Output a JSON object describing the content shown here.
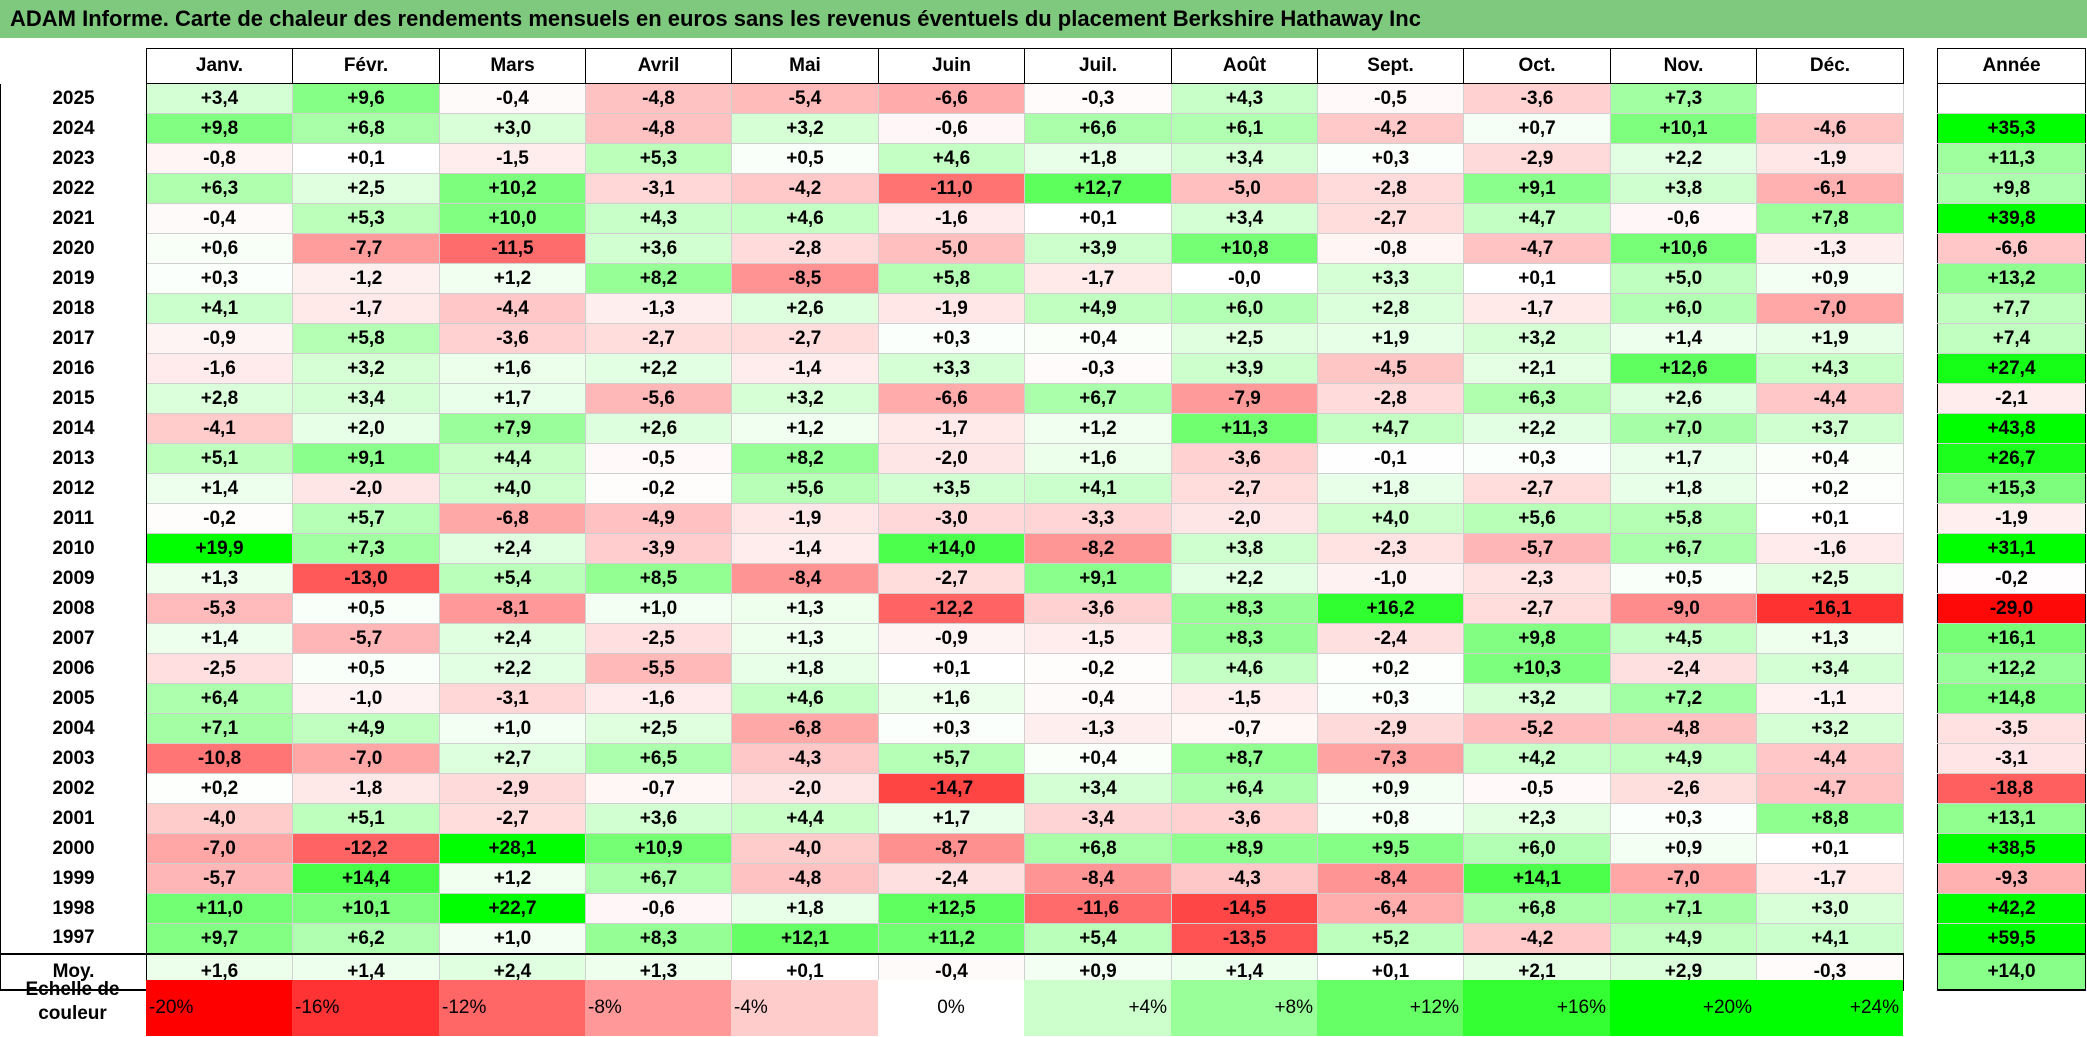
{
  "title": "ADAM Informe. Carte de chaleur des rendements mensuels en euros sans les revenus éventuels du placement Berkshire Hathaway Inc",
  "chart_data": {
    "type": "heatmap",
    "title": "ADAM Informe. Carte de chaleur des rendements mensuels en euros sans les revenus éventuels du placement Berkshire Hathaway Inc",
    "months": [
      "Janv.",
      "Févr.",
      "Mars",
      "Avril",
      "Mai",
      "Juin",
      "Juil.",
      "Août",
      "Sept.",
      "Oct.",
      "Nov.",
      "Déc."
    ],
    "annual_header": "Année",
    "rows": [
      {
        "year": "2025",
        "values": [
          "+3,4",
          "+9,6",
          "-0,4",
          "-4,8",
          "-5,4",
          "-6,6",
          "-0,3",
          "+4,3",
          "-0,5",
          "-3,6",
          "+7,3",
          ""
        ],
        "annual": ""
      },
      {
        "year": "2024",
        "values": [
          "+9,8",
          "+6,8",
          "+3,0",
          "-4,8",
          "+3,2",
          "-0,6",
          "+6,6",
          "+6,1",
          "-4,2",
          "+0,7",
          "+10,1",
          "-4,6"
        ],
        "annual": "+35,3"
      },
      {
        "year": "2023",
        "values": [
          "-0,8",
          "+0,1",
          "-1,5",
          "+5,3",
          "+0,5",
          "+4,6",
          "+1,8",
          "+3,4",
          "+0,3",
          "-2,9",
          "+2,2",
          "-1,9"
        ],
        "annual": "+11,3"
      },
      {
        "year": "2022",
        "values": [
          "+6,3",
          "+2,5",
          "+10,2",
          "-3,1",
          "-4,2",
          "-11,0",
          "+12,7",
          "-5,0",
          "-2,8",
          "+9,1",
          "+3,8",
          "-6,1"
        ],
        "annual": "+9,8"
      },
      {
        "year": "2021",
        "values": [
          "-0,4",
          "+5,3",
          "+10,0",
          "+4,3",
          "+4,6",
          "-1,6",
          "+0,1",
          "+3,4",
          "-2,7",
          "+4,7",
          "-0,6",
          "+7,8"
        ],
        "annual": "+39,8"
      },
      {
        "year": "2020",
        "values": [
          "+0,6",
          "-7,7",
          "-11,5",
          "+3,6",
          "-2,8",
          "-5,0",
          "+3,9",
          "+10,8",
          "-0,8",
          "-4,7",
          "+10,6",
          "-1,3"
        ],
        "annual": "-6,6"
      },
      {
        "year": "2019",
        "values": [
          "+0,3",
          "-1,2",
          "+1,2",
          "+8,2",
          "-8,5",
          "+5,8",
          "-1,7",
          "-0,0",
          "+3,3",
          "+0,1",
          "+5,0",
          "+0,9"
        ],
        "annual": "+13,2"
      },
      {
        "year": "2018",
        "values": [
          "+4,1",
          "-1,7",
          "-4,4",
          "-1,3",
          "+2,6",
          "-1,9",
          "+4,9",
          "+6,0",
          "+2,8",
          "-1,7",
          "+6,0",
          "-7,0"
        ],
        "annual": "+7,7"
      },
      {
        "year": "2017",
        "values": [
          "-0,9",
          "+5,8",
          "-3,6",
          "-2,7",
          "-2,7",
          "+0,3",
          "+0,4",
          "+2,5",
          "+1,9",
          "+3,2",
          "+1,4",
          "+1,9"
        ],
        "annual": "+7,4"
      },
      {
        "year": "2016",
        "values": [
          "-1,6",
          "+3,2",
          "+1,6",
          "+2,2",
          "-1,4",
          "+3,3",
          "-0,3",
          "+3,9",
          "-4,5",
          "+2,1",
          "+12,6",
          "+4,3"
        ],
        "annual": "+27,4"
      },
      {
        "year": "2015",
        "values": [
          "+2,8",
          "+3,4",
          "+1,7",
          "-5,6",
          "+3,2",
          "-6,6",
          "+6,7",
          "-7,9",
          "-2,8",
          "+6,3",
          "+2,6",
          "-4,4"
        ],
        "annual": "-2,1"
      },
      {
        "year": "2014",
        "values": [
          "-4,1",
          "+2,0",
          "+7,9",
          "+2,6",
          "+1,2",
          "-1,7",
          "+1,2",
          "+11,3",
          "+4,7",
          "+2,2",
          "+7,0",
          "+3,7"
        ],
        "annual": "+43,8"
      },
      {
        "year": "2013",
        "values": [
          "+5,1",
          "+9,1",
          "+4,4",
          "-0,5",
          "+8,2",
          "-2,0",
          "+1,6",
          "-3,6",
          "-0,1",
          "+0,3",
          "+1,7",
          "+0,4"
        ],
        "annual": "+26,7"
      },
      {
        "year": "2012",
        "values": [
          "+1,4",
          "-2,0",
          "+4,0",
          "-0,2",
          "+5,6",
          "+3,5",
          "+4,1",
          "-2,7",
          "+1,8",
          "-2,7",
          "+1,8",
          "+0,2"
        ],
        "annual": "+15,3"
      },
      {
        "year": "2011",
        "values": [
          "-0,2",
          "+5,7",
          "-6,8",
          "-4,9",
          "-1,9",
          "-3,0",
          "-3,3",
          "-2,0",
          "+4,0",
          "+5,6",
          "+5,8",
          "+0,1"
        ],
        "annual": "-1,9"
      },
      {
        "year": "2010",
        "values": [
          "+19,9",
          "+7,3",
          "+2,4",
          "-3,9",
          "-1,4",
          "+14,0",
          "-8,2",
          "+3,8",
          "-2,3",
          "-5,7",
          "+6,7",
          "-1,6"
        ],
        "annual": "+31,1"
      },
      {
        "year": "2009",
        "values": [
          "+1,3",
          "-13,0",
          "+5,4",
          "+8,5",
          "-8,4",
          "-2,7",
          "+9,1",
          "+2,2",
          "-1,0",
          "-2,3",
          "+0,5",
          "+2,5"
        ],
        "annual": "-0,2"
      },
      {
        "year": "2008",
        "values": [
          "-5,3",
          "+0,5",
          "-8,1",
          "+1,0",
          "+1,3",
          "-12,2",
          "-3,6",
          "+8,3",
          "+16,2",
          "-2,7",
          "-9,0",
          "-16,1"
        ],
        "annual": "-29,0"
      },
      {
        "year": "2007",
        "values": [
          "+1,4",
          "-5,7",
          "+2,4",
          "-2,5",
          "+1,3",
          "-0,9",
          "-1,5",
          "+8,3",
          "-2,4",
          "+9,8",
          "+4,5",
          "+1,3"
        ],
        "annual": "+16,1"
      },
      {
        "year": "2006",
        "values": [
          "-2,5",
          "+0,5",
          "+2,2",
          "-5,5",
          "+1,8",
          "+0,1",
          "-0,2",
          "+4,6",
          "+0,2",
          "+10,3",
          "-2,4",
          "+3,4"
        ],
        "annual": "+12,2"
      },
      {
        "year": "2005",
        "values": [
          "+6,4",
          "-1,0",
          "-3,1",
          "-1,6",
          "+4,6",
          "+1,6",
          "-0,4",
          "-1,5",
          "+0,3",
          "+3,2",
          "+7,2",
          "-1,1"
        ],
        "annual": "+14,8"
      },
      {
        "year": "2004",
        "values": [
          "+7,1",
          "+4,9",
          "+1,0",
          "+2,5",
          "-6,8",
          "+0,3",
          "-1,3",
          "-0,7",
          "-2,9",
          "-5,2",
          "-4,8",
          "+3,2"
        ],
        "annual": "-3,5"
      },
      {
        "year": "2003",
        "values": [
          "-10,8",
          "-7,0",
          "+2,7",
          "+6,5",
          "-4,3",
          "+5,7",
          "+0,4",
          "+8,7",
          "-7,3",
          "+4,2",
          "+4,9",
          "-4,4"
        ],
        "annual": "-3,1"
      },
      {
        "year": "2002",
        "values": [
          "+0,2",
          "-1,8",
          "-2,9",
          "-0,7",
          "-2,0",
          "-14,7",
          "+3,4",
          "+6,4",
          "+0,9",
          "-0,5",
          "-2,6",
          "-4,7"
        ],
        "annual": "-18,8"
      },
      {
        "year": "2001",
        "values": [
          "-4,0",
          "+5,1",
          "-2,7",
          "+3,6",
          "+4,4",
          "+1,7",
          "-3,4",
          "-3,6",
          "+0,8",
          "+2,3",
          "+0,3",
          "+8,8"
        ],
        "annual": "+13,1"
      },
      {
        "year": "2000",
        "values": [
          "-7,0",
          "-12,2",
          "+28,1",
          "+10,9",
          "-4,0",
          "-8,7",
          "+6,8",
          "+8,9",
          "+9,5",
          "+6,0",
          "+0,9",
          "+0,1"
        ],
        "annual": "+38,5"
      },
      {
        "year": "1999",
        "values": [
          "-5,7",
          "+14,4",
          "+1,2",
          "+6,7",
          "-4,8",
          "-2,4",
          "-8,4",
          "-4,3",
          "-8,4",
          "+14,1",
          "-7,0",
          "-1,7"
        ],
        "annual": "-9,3"
      },
      {
        "year": "1998",
        "values": [
          "+11,0",
          "+10,1",
          "+22,7",
          "-0,6",
          "+1,8",
          "+12,5",
          "-11,6",
          "-14,5",
          "-6,4",
          "+6,8",
          "+7,1",
          "+3,0"
        ],
        "annual": "+42,2"
      },
      {
        "year": "1997",
        "values": [
          "+9,7",
          "+6,2",
          "+1,0",
          "+8,3",
          "+12,1",
          "+11,2",
          "+5,4",
          "-13,5",
          "+5,2",
          "-4,2",
          "+4,9",
          "+4,1"
        ],
        "annual": "+59,5"
      }
    ],
    "average": {
      "label": "Moy.",
      "values": [
        "+1,6",
        "+1,4",
        "+2,4",
        "+1,3",
        "+0,1",
        "-0,4",
        "+0,9",
        "+1,4",
        "+0,1",
        "+2,1",
        "+2,9",
        "-0,3"
      ],
      "annual": "+14,0"
    },
    "scale": {
      "label": "Echelle de couleur",
      "steps": [
        "-20%",
        "-16%",
        "-12%",
        "-8%",
        "-4%",
        "0%",
        "+4%",
        "+8%",
        "+12%",
        "+16%",
        "+20%",
        "+24%"
      ],
      "step_values": [
        -20,
        -16,
        -12,
        -8,
        -4,
        0,
        4,
        8,
        12,
        16,
        20,
        24
      ]
    },
    "colors": {
      "negative_max": "#ff0000",
      "neutral": "#ffffff",
      "positive_max": "#00ff00",
      "title_bar": "#7fc97f"
    }
  }
}
